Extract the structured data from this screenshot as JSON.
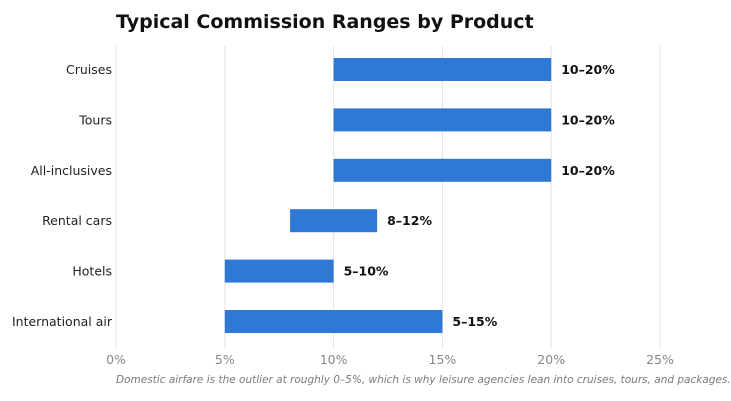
{
  "chart_data": {
    "type": "bar",
    "orientation": "horizontal",
    "title": "Typical Commission Ranges by Product",
    "categories": [
      "Cruises",
      "Tours",
      "All-inclusives",
      "Rental cars",
      "Hotels",
      "International air"
    ],
    "ranges": [
      [
        10,
        20
      ],
      [
        10,
        20
      ],
      [
        10,
        20
      ],
      [
        8,
        12
      ],
      [
        5,
        10
      ],
      [
        5,
        15
      ]
    ],
    "data_labels": [
      "10–20%",
      "10–20%",
      "10–20%",
      "8–12%",
      "5–10%",
      "5–15%"
    ],
    "xlim": [
      0,
      25
    ],
    "xticks": [
      0,
      5,
      10,
      15,
      20,
      25
    ],
    "xtick_labels": [
      "0%",
      "5%",
      "10%",
      "15%",
      "20%",
      "25%"
    ],
    "xlabel": "",
    "ylabel": "",
    "grid": "vertical",
    "bar_color": "#2f78d6",
    "caption": "Domestic airfare is the outlier at roughly 0–5%, which is why leisure agencies lean into cruises, tours, and packages."
  }
}
